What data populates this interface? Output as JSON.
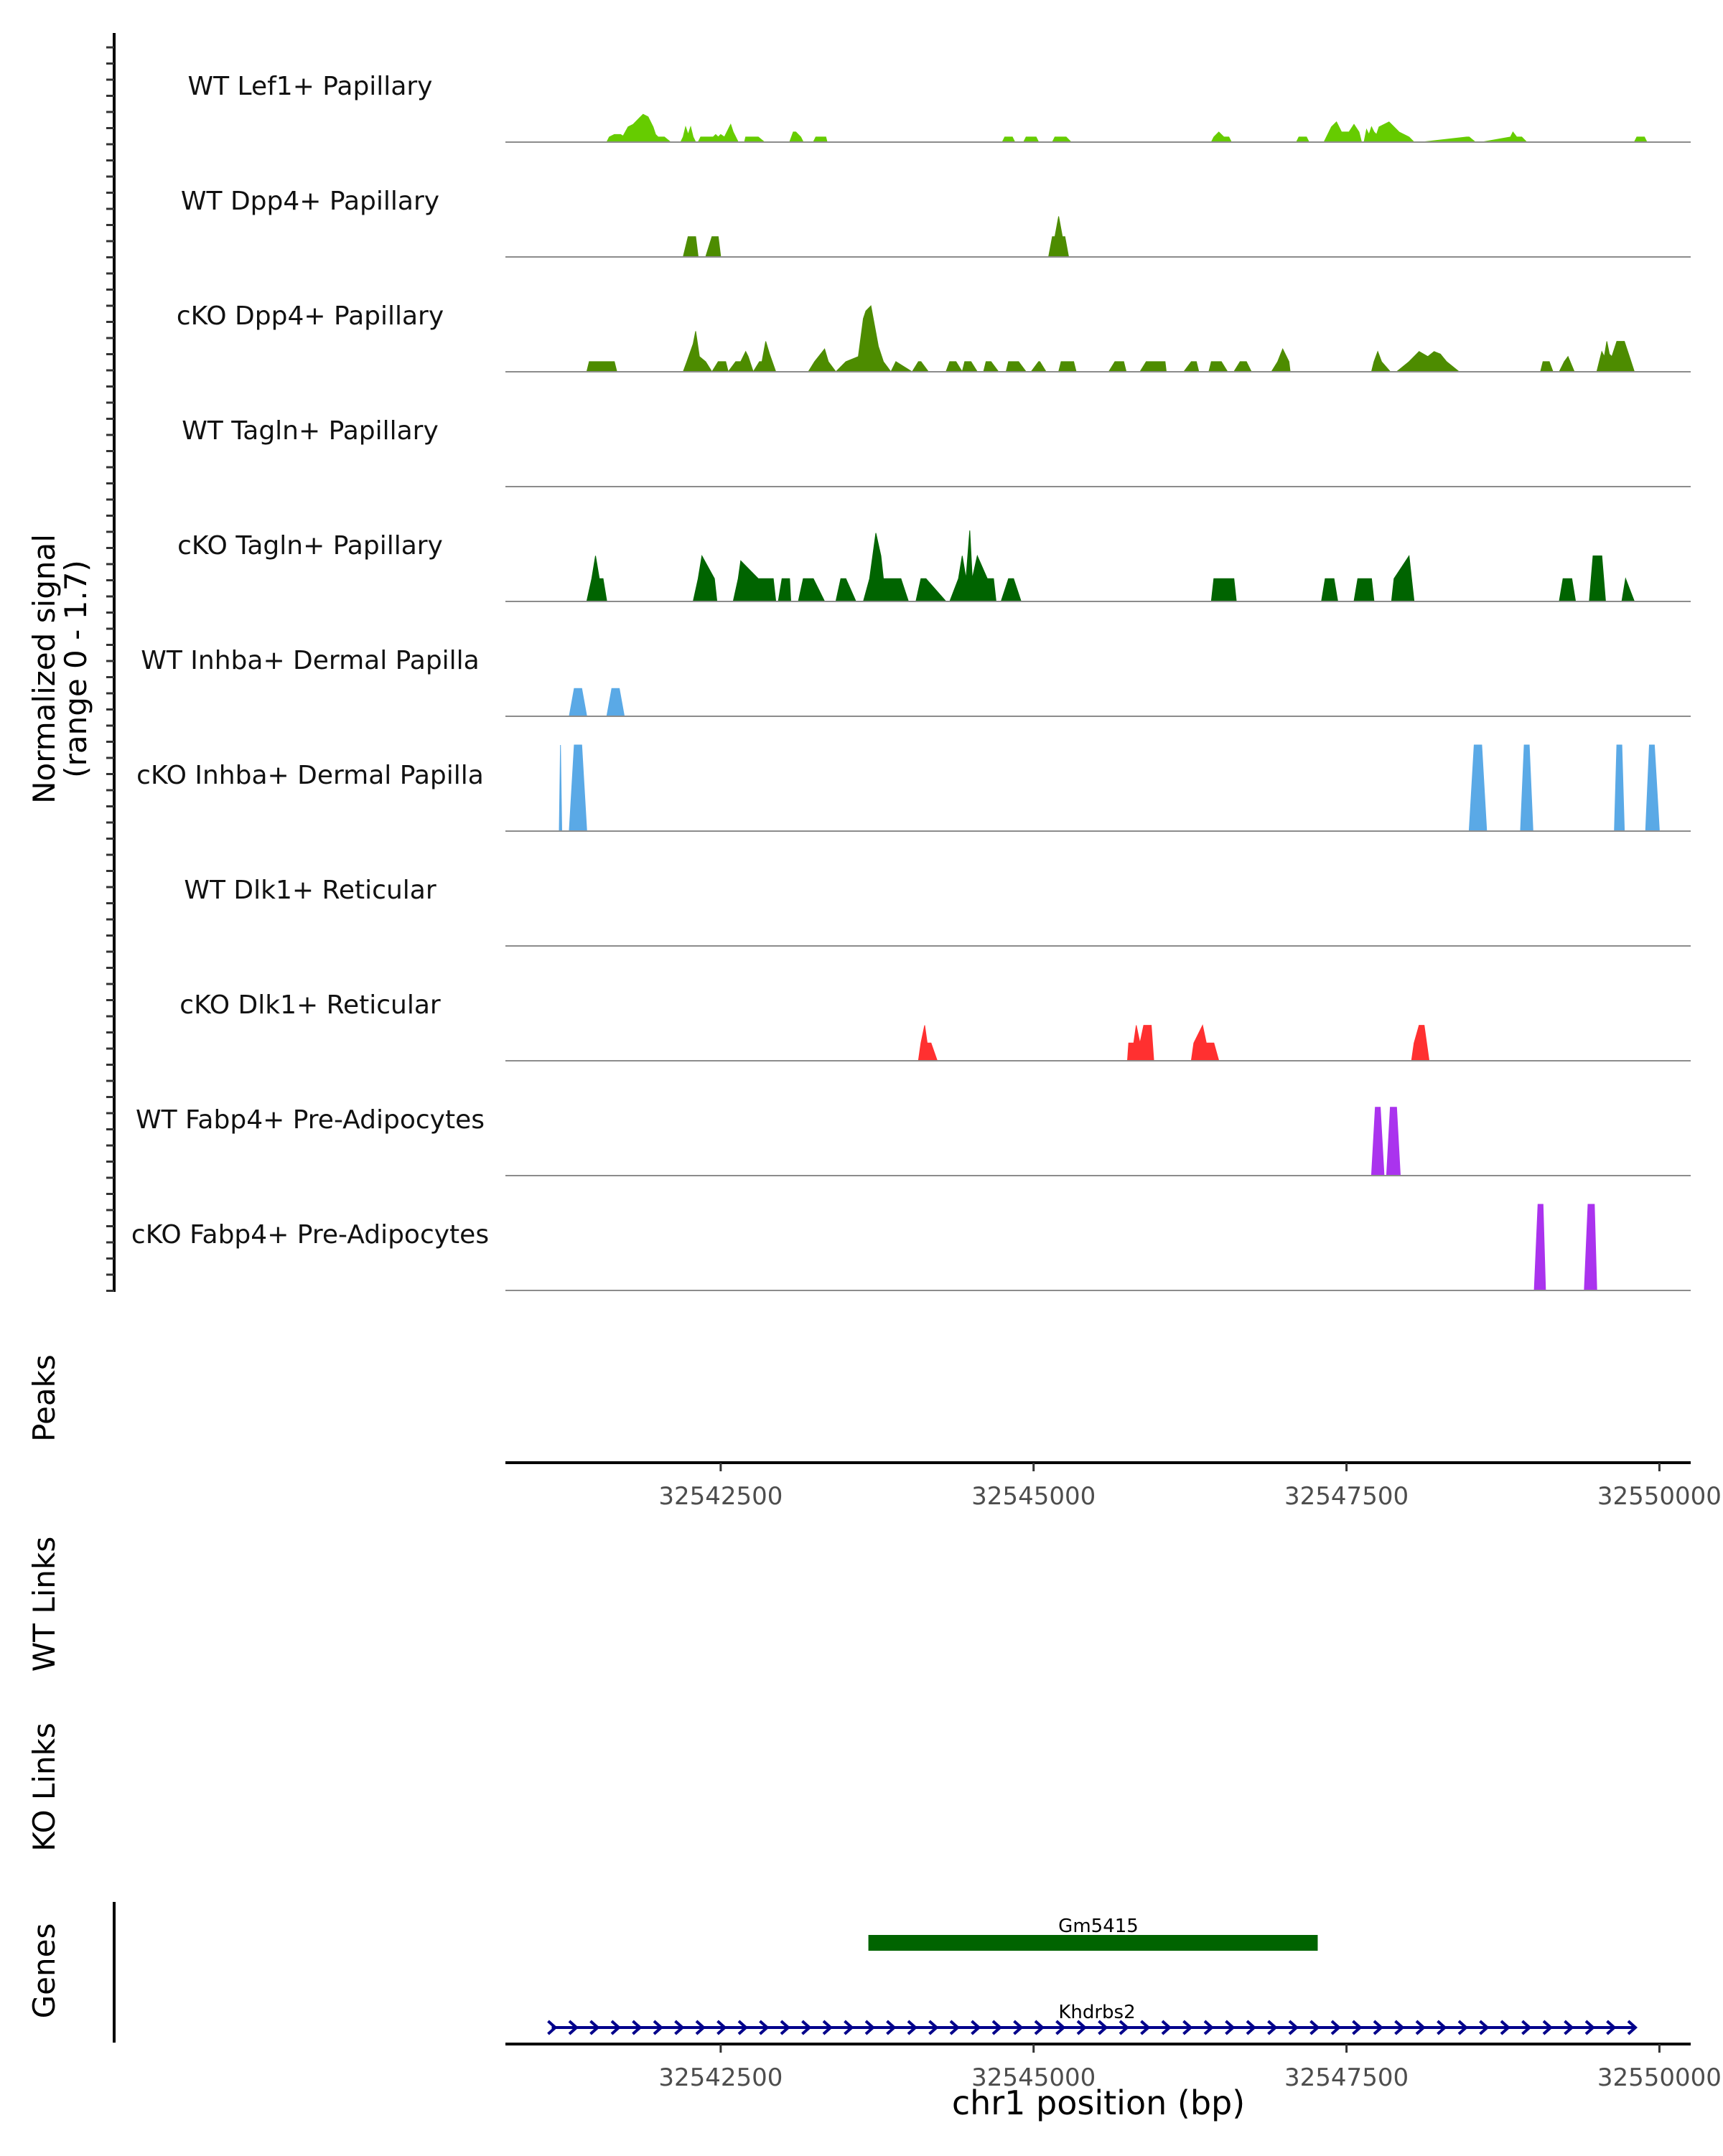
{
  "chart_data": {
    "type": "area",
    "title": "",
    "chromosome": "chr1",
    "xlabel": "chr1 position (bp)",
    "xlim": [
      32540780,
      32550250
    ],
    "x_ticks": [
      32542500,
      32545000,
      32547500,
      32550000
    ],
    "x_tick_labels": [
      "32542500",
      "32545000",
      "32547500",
      "32550000"
    ],
    "coverage_ylabel": "Normalized signal",
    "coverage_range_label": "(range 0 - 1.7)",
    "ylim": [
      0,
      1.7
    ],
    "panels": [
      "Peaks",
      "WT Links",
      "KO Links",
      "Genes"
    ],
    "tracks": [
      {
        "name": "WT Lef1+ Papillary",
        "color": "#66cc00",
        "x": [
          32541590,
          32541610,
          32541650,
          32541700,
          32541720,
          32541760,
          32541800,
          32541840,
          32541880,
          32541920,
          32541960,
          32541980,
          32542000,
          32542050,
          32542100,
          32542140,
          32542180,
          32542200,
          32542220,
          32542240,
          32542260,
          32542280,
          32542300,
          32542320,
          32542340,
          32542380,
          32542420,
          32542440,
          32542460,
          32542480,
          32542500,
          32542530,
          32542560,
          32542580,
          32542600,
          32542640,
          32542690,
          32542700,
          32542800,
          32542850,
          32542900,
          32543050,
          32543080,
          32543100,
          32543140,
          32543160,
          32543240,
          32543260,
          32543300,
          32543340,
          32543350,
          32544750,
          32544770,
          32544830,
          32544850,
          32544920,
          32544940,
          32545020,
          32545040,
          32545150,
          32545170,
          32545200,
          32545260,
          32545300,
          32545400,
          32545420,
          32546420,
          32546440,
          32546480,
          32546520,
          32546560,
          32546580,
          32547100,
          32547120,
          32547180,
          32547200,
          32547320,
          32547340,
          32547380,
          32547420,
          32547460,
          32547520,
          32547560,
          32547600,
          32547620,
          32547640,
          32547660,
          32547680,
          32547700,
          32547720,
          32547740,
          32547760,
          32547800,
          32547840,
          32547880,
          32547920,
          32547960,
          32548000,
          32548040,
          32548080,
          32548100,
          32548460,
          32548480,
          32548530,
          32548560,
          32548580,
          32548810,
          32548830,
          32548860,
          32548900,
          32548940,
          32548960,
          32549800,
          32549820,
          32549880,
          32549900
        ],
        "y": [
          0,
          0.1,
          0.15,
          0.15,
          0.12,
          0.3,
          0.35,
          0.45,
          0.55,
          0.5,
          0.3,
          0.15,
          0.1,
          0.1,
          0,
          0,
          0,
          0.1,
          0.3,
          0.15,
          0.3,
          0.1,
          0,
          0,
          0.1,
          0.1,
          0.1,
          0.1,
          0.15,
          0.1,
          0.15,
          0.1,
          0.25,
          0.35,
          0.2,
          0,
          0,
          0.1,
          0.1,
          0,
          0,
          0,
          0.2,
          0.2,
          0.1,
          0,
          0,
          0.1,
          0.1,
          0.1,
          0,
          0,
          0.1,
          0.1,
          0,
          0,
          0.1,
          0.1,
          0,
          0,
          0.1,
          0.1,
          0.1,
          0,
          0,
          0,
          0,
          0.1,
          0.2,
          0.1,
          0.1,
          0,
          0,
          0.1,
          0.1,
          0,
          0,
          0.1,
          0.3,
          0.4,
          0.2,
          0.2,
          0.35,
          0.2,
          0,
          0,
          0.25,
          0.15,
          0.3,
          0.2,
          0.15,
          0.3,
          0.35,
          0.4,
          0.3,
          0.2,
          0.15,
          0.1,
          0,
          0,
          0,
          0.1,
          0.1,
          0,
          0,
          0,
          0.1,
          0.2,
          0.1,
          0.1,
          0,
          0,
          0,
          0.1,
          0.1,
          0
        ]
      },
      {
        "name": "WT Dpp4+ Papillary",
        "color": "#4d8c00",
        "x": [
          32542200,
          32542240,
          32542300,
          32542320,
          32542380,
          32542430,
          32542480,
          32542500,
          32545120,
          32545150,
          32545170,
          32545200,
          32545230,
          32545250,
          32545280
        ],
        "y": [
          0,
          0.4,
          0.4,
          0,
          0,
          0.4,
          0.4,
          0,
          0,
          0.4,
          0.4,
          0.8,
          0.4,
          0.4,
          0
        ]
      },
      {
        "name": "cKO Dpp4+ Papillary",
        "color": "#4d8c00",
        "x": [
          32541430,
          32541450,
          32541650,
          32541670,
          32542200,
          32542230,
          32542280,
          32542300,
          32542330,
          32542380,
          32542430,
          32542480,
          32542500,
          32542540,
          32542560,
          32542620,
          32542660,
          32542700,
          32542720,
          32542760,
          32542810,
          32542830,
          32542860,
          32542890,
          32542940,
          32543200,
          32543250,
          32543330,
          32543360,
          32543420,
          32543500,
          32543600,
          32543640,
          32543660,
          32543700,
          32543760,
          32543800,
          32543860,
          32543900,
          32544030,
          32544080,
          32544100,
          32544160,
          32544300,
          32544330,
          32544380,
          32544430,
          32544450,
          32544500,
          32544550,
          32544600,
          32544620,
          32544660,
          32544720,
          32544780,
          32544800,
          32544880,
          32544940,
          32544980,
          32545040,
          32545050,
          32545100,
          32545200,
          32545220,
          32545320,
          32545340,
          32545600,
          32545650,
          32545720,
          32545740,
          32545850,
          32545900,
          32546050,
          32546060,
          32546200,
          32546260,
          32546300,
          32546320,
          32546400,
          32546420,
          32546500,
          32546550,
          32546600,
          32546650,
          32546700,
          32546740,
          32546900,
          32546950,
          32546990,
          32547040,
          32547050,
          32547700,
          32547720,
          32547750,
          32547780,
          32547850,
          32547900,
          32548000,
          32548080,
          32548150,
          32548200,
          32548250,
          32548300,
          32548400,
          32548440,
          32549050,
          32549070,
          32549120,
          32549150,
          32549200,
          32549240,
          32549270,
          32549320,
          32549500,
          32549520,
          32549540,
          32549560,
          32549580,
          32549600,
          32549620,
          32549660,
          32549720,
          32549760,
          32549800
        ],
        "y": [
          0,
          0.2,
          0.2,
          0,
          0,
          0.2,
          0.55,
          0.8,
          0.3,
          0.2,
          0,
          0.2,
          0.2,
          0.2,
          0,
          0.2,
          0.2,
          0.4,
          0.3,
          0,
          0.2,
          0.2,
          0.6,
          0.35,
          0,
          0,
          0.2,
          0.45,
          0.2,
          0,
          0.2,
          0.3,
          1.05,
          1.2,
          1.3,
          0.5,
          0.2,
          0,
          0.2,
          0,
          0.2,
          0.2,
          0,
          0,
          0.2,
          0.2,
          0,
          0.2,
          0.2,
          0,
          0,
          0.2,
          0.2,
          0,
          0,
          0.2,
          0.2,
          0,
          0,
          0.2,
          0.2,
          0,
          0,
          0.2,
          0.2,
          0,
          0,
          0.2,
          0.2,
          0,
          0,
          0.2,
          0.2,
          0,
          0,
          0.2,
          0.2,
          0,
          0,
          0.2,
          0.2,
          0,
          0,
          0.2,
          0.2,
          0,
          0,
          0.2,
          0.45,
          0.2,
          0,
          0,
          0.2,
          0.4,
          0.2,
          0,
          0,
          0.2,
          0.4,
          0.3,
          0.4,
          0.35,
          0.2,
          0,
          0,
          0,
          0.2,
          0.2,
          0,
          0,
          0.2,
          0.3,
          0,
          0,
          0.2,
          0.4,
          0.3,
          0.6,
          0.35,
          0.3,
          0.6,
          0.6,
          0.3,
          0
        ],
        "_note": "values read approximately from track heights"
      },
      {
        "name": "WT Tagln+ Papillary",
        "color": "#006400",
        "x": [],
        "y": []
      },
      {
        "name": "cKO Tagln+ Papillary",
        "color": "#006400",
        "x": [
          32541430,
          32541470,
          32541500,
          32541530,
          32541560,
          32541590,
          32542280,
          32542320,
          32542350,
          32542450,
          32542470,
          32542600,
          32542640,
          32542660,
          32542800,
          32542920,
          32542940,
          32542960,
          32542990,
          32543050,
          32543060,
          32543120,
          32543160,
          32543240,
          32543330,
          32543370,
          32543420,
          32543460,
          32543500,
          32543580,
          32543600,
          32543640,
          32543690,
          32543740,
          32543780,
          32543800,
          32543940,
          32544000,
          32544060,
          32544100,
          32544140,
          32544300,
          32544330,
          32544400,
          32544430,
          32544460,
          32544490,
          32544510,
          32544550,
          32544630,
          32544660,
          32544680,
          32544700,
          32544740,
          32544800,
          32544840,
          32544900,
          32545020,
          32546420,
          32546440,
          32546600,
          32546620,
          32547300,
          32547330,
          32547400,
          32547430,
          32547560,
          32547590,
          32547700,
          32547720,
          32547860,
          32547880,
          32548000,
          32548040,
          32549200,
          32549230,
          32549300,
          32549330,
          32549440,
          32549470,
          32549540,
          32549570,
          32549700,
          32549730,
          32549800
        ],
        "y": [
          0,
          0.45,
          0.9,
          0.45,
          0.45,
          0,
          0,
          0.45,
          0.9,
          0.45,
          0,
          0,
          0.45,
          0.8,
          0.45,
          0.45,
          0,
          0,
          0.45,
          0.45,
          0,
          0,
          0.45,
          0.45,
          0,
          0,
          0,
          0.45,
          0.45,
          0,
          0,
          0,
          0.45,
          1.35,
          0.9,
          0.45,
          0.45,
          0,
          0,
          0.45,
          0.45,
          0,
          0,
          0.45,
          0.9,
          0.45,
          1.4,
          0.45,
          0.9,
          0.45,
          0.45,
          0.45,
          0,
          0,
          0.45,
          0.45,
          0,
          0,
          0,
          0.45,
          0.45,
          0,
          0,
          0.45,
          0.45,
          0,
          0,
          0.45,
          0.45,
          0,
          0,
          0.45,
          0.9,
          0,
          0,
          0.45,
          0.45,
          0,
          0,
          0.9,
          0.9,
          0,
          0,
          0.45,
          0
        ],
        "_note": "values read approximately from track heights"
      },
      {
        "name": "WT Inhba+ Dermal Papilla",
        "color": "#5aa9e6",
        "x": [
          32541290,
          32541330,
          32541390,
          32541430,
          32541590,
          32541630,
          32541690,
          32541730
        ],
        "y": [
          0,
          0.55,
          0.55,
          0,
          0,
          0.55,
          0.55,
          0
        ]
      },
      {
        "name": "cKO Inhba+ Dermal Papilla",
        "color": "#5aa9e6",
        "x": [
          32541210,
          32541220,
          32541230,
          32541290,
          32541330,
          32541390,
          32541430,
          32548480,
          32548520,
          32548580,
          32548620,
          32548890,
          32548920,
          32548960,
          32548990,
          32549640,
          32549660,
          32549700,
          32549720,
          32549890,
          32549920,
          32549960,
          32550000
        ],
        "y": [
          0,
          1.7,
          0,
          0,
          1.7,
          1.7,
          0,
          0,
          1.7,
          1.7,
          0,
          0,
          1.7,
          1.7,
          0,
          0,
          1.7,
          1.7,
          0,
          0,
          1.7,
          1.7,
          0
        ]
      },
      {
        "name": "WT Dlk1+ Reticular",
        "color": "#ff3030",
        "x": [],
        "y": []
      },
      {
        "name": "cKO Dlk1+ Reticular",
        "color": "#ff3030",
        "x": [
          32544080,
          32544100,
          32544130,
          32544150,
          32544180,
          32544230,
          32545750,
          32545760,
          32545800,
          32545820,
          32545850,
          32545880,
          32545940,
          32545960,
          32546260,
          32546280,
          32546350,
          32546380,
          32546410,
          32546440,
          32546480,
          32548020,
          32548040,
          32548080,
          32548120,
          32548160
        ],
        "y": [
          0,
          0.35,
          0.7,
          0.35,
          0.35,
          0,
          0,
          0.35,
          0.35,
          0.7,
          0.35,
          0.7,
          0.7,
          0,
          0,
          0.35,
          0.7,
          0.35,
          0.35,
          0.35,
          0,
          0,
          0.35,
          0.7,
          0.7,
          0
        ]
      },
      {
        "name": "WT Fabp4+ Pre-Adipocytes",
        "color": "#aa33ee",
        "x": [
          32547700,
          32547730,
          32547770,
          32547800,
          32547820,
          32547850,
          32547900,
          32547930
        ],
        "y": [
          0,
          1.35,
          1.35,
          0,
          0,
          1.35,
          1.35,
          0
        ]
      },
      {
        "name": "cKO Fabp4+ Pre-Adipocytes",
        "color": "#aa33ee",
        "x": [
          32549000,
          32549030,
          32549070,
          32549090,
          32549400,
          32549430,
          32549480,
          32549500
        ],
        "y": [
          0,
          1.7,
          1.7,
          0,
          0,
          1.7,
          1.7,
          0
        ]
      }
    ],
    "genes": [
      {
        "name": "Gm5415",
        "start": 32543680,
        "end": 32547270,
        "color": "#006400",
        "strand": ""
      },
      {
        "name": "Khdrbs2",
        "start": 32541150,
        "end": 32549800,
        "color": "#00008b",
        "strand": "+"
      }
    ]
  }
}
